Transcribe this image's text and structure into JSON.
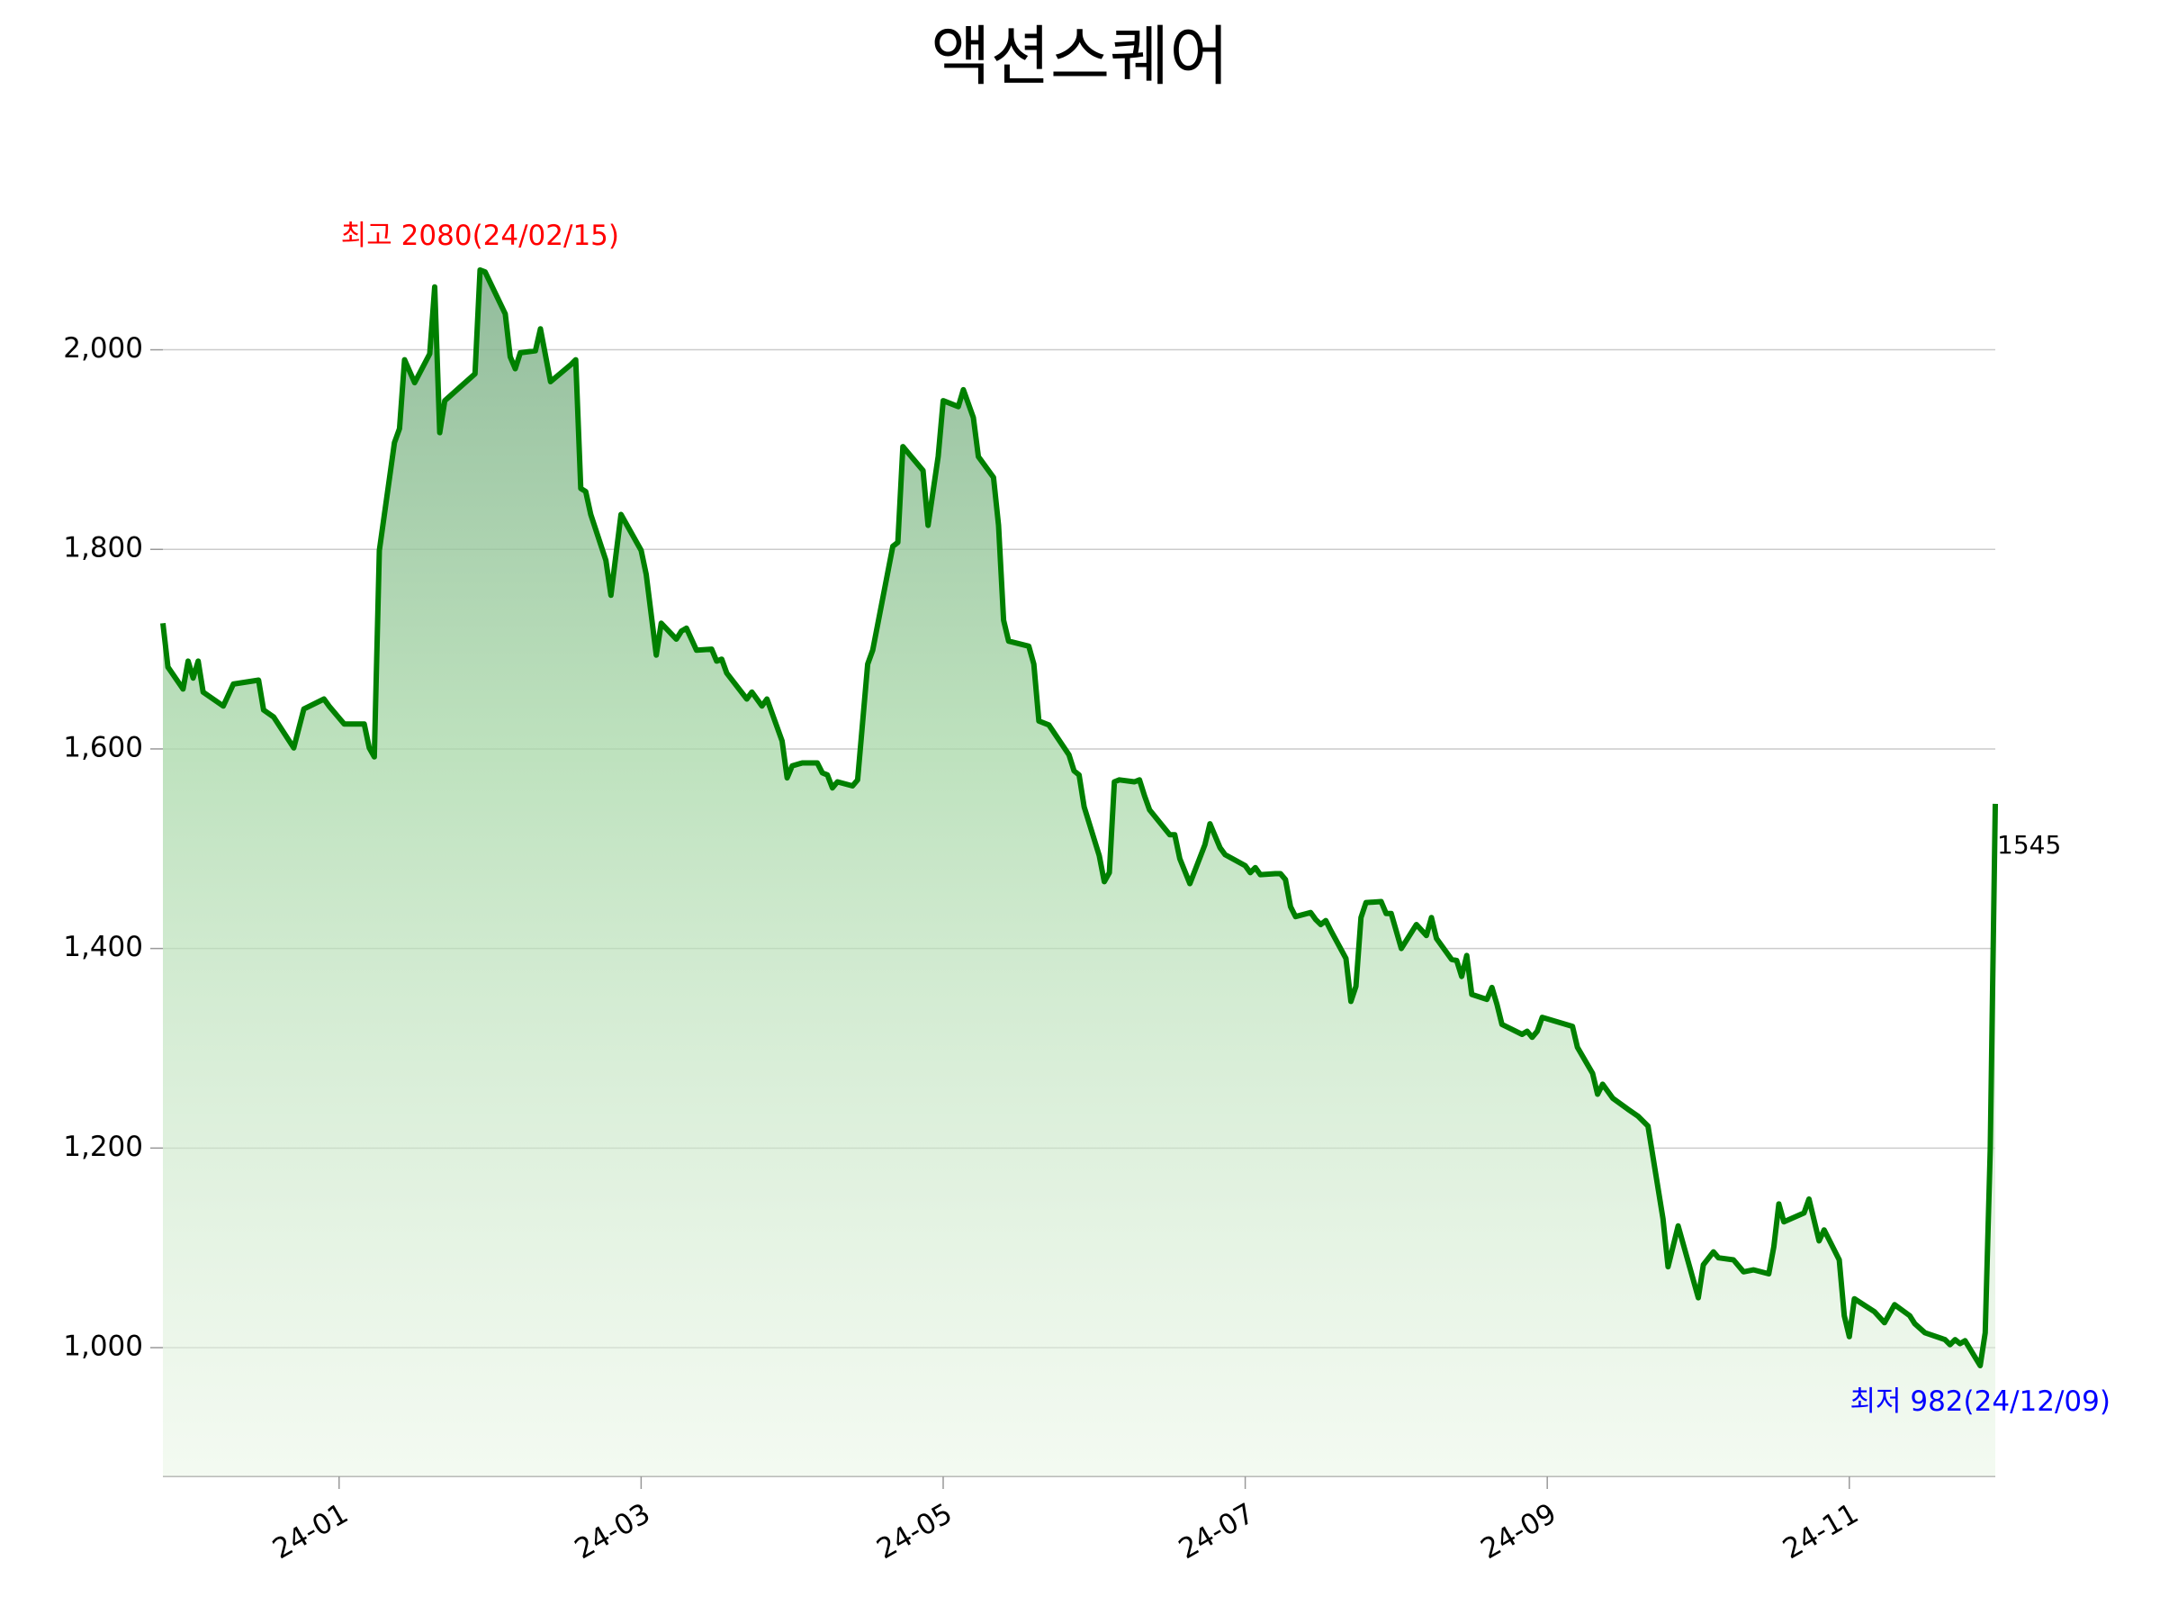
{
  "chart_data": {
    "type": "area",
    "title": "액션스퀘어",
    "x": [
      "2023-12-14",
      "2023-12-15",
      "2023-12-18",
      "2023-12-19",
      "2023-12-20",
      "2023-12-21",
      "2023-12-22",
      "2023-12-26",
      "2023-12-28",
      "2024-01-02",
      "2024-01-03",
      "2024-01-05",
      "2024-01-09",
      "2024-01-11",
      "2024-01-15",
      "2024-01-16",
      "2024-01-19",
      "2024-01-23",
      "2024-01-24",
      "2024-01-25",
      "2024-01-26",
      "2024-01-29",
      "2024-01-30",
      "2024-01-31",
      "2024-02-02",
      "2024-02-05",
      "2024-02-06",
      "2024-02-07",
      "2024-02-08",
      "2024-02-14",
      "2024-02-15",
      "2024-02-16",
      "2024-02-20",
      "2024-02-21",
      "2024-02-22",
      "2024-02-23",
      "2024-02-26",
      "2024-02-27",
      "2024-02-29",
      "2024-03-04",
      "2024-03-05",
      "2024-03-06",
      "2024-03-07",
      "2024-03-08",
      "2024-03-11",
      "2024-03-12",
      "2024-03-14",
      "2024-03-18",
      "2024-03-19",
      "2024-03-21",
      "2024-03-22",
      "2024-03-25",
      "2024-03-26",
      "2024-03-27",
      "2024-03-29",
      "2024-04-01",
      "2024-04-02",
      "2024-04-03",
      "2024-04-04",
      "2024-04-08",
      "2024-04-09",
      "2024-04-11",
      "2024-04-12",
      "2024-04-15",
      "2024-04-16",
      "2024-04-17",
      "2024-04-19",
      "2024-04-22",
      "2024-04-23",
      "2024-04-24",
      "2024-04-25",
      "2024-04-26",
      "2024-04-29",
      "2024-04-30",
      "2024-05-02",
      "2024-05-03",
      "2024-05-07",
      "2024-05-08",
      "2024-05-09",
      "2024-05-13",
      "2024-05-14",
      "2024-05-16",
      "2024-05-17",
      "2024-05-20",
      "2024-05-21",
      "2024-05-23",
      "2024-05-24",
      "2024-05-27",
      "2024-05-28",
      "2024-05-29",
      "2024-05-30",
      "2024-06-03",
      "2024-06-04",
      "2024-06-05",
      "2024-06-07",
      "2024-06-11",
      "2024-06-12",
      "2024-06-13",
      "2024-06-14",
      "2024-06-17",
      "2024-06-18",
      "2024-06-19",
      "2024-06-20",
      "2024-06-21",
      "2024-06-24",
      "2024-06-25",
      "2024-06-26",
      "2024-06-27",
      "2024-07-01",
      "2024-07-02",
      "2024-07-03",
      "2024-07-05",
      "2024-07-08",
      "2024-07-09",
      "2024-07-11",
      "2024-07-12",
      "2024-07-16",
      "2024-07-17",
      "2024-07-18",
      "2024-07-19",
      "2024-07-22",
      "2024-07-23",
      "2024-07-24",
      "2024-07-25",
      "2024-07-26",
      "2024-07-29",
      "2024-07-30",
      "2024-07-31",
      "2024-08-01",
      "2024-08-02",
      "2024-08-05",
      "2024-08-06",
      "2024-08-07",
      "2024-08-08",
      "2024-08-09",
      "2024-08-12",
      "2024-08-13",
      "2024-08-14",
      "2024-08-16",
      "2024-08-19",
      "2024-08-21",
      "2024-08-22",
      "2024-08-23",
      "2024-08-26",
      "2024-08-27",
      "2024-08-28",
      "2024-08-29",
      "2024-08-30",
      "2024-09-02",
      "2024-09-03",
      "2024-09-04",
      "2024-09-05",
      "2024-09-09",
      "2024-09-10",
      "2024-09-11",
      "2024-09-12",
      "2024-09-13",
      "2024-09-19",
      "2024-09-20",
      "2024-09-23",
      "2024-09-24",
      "2024-09-25",
      "2024-09-27",
      "2024-09-30",
      "2024-10-02",
      "2024-10-04",
      "2024-10-07",
      "2024-10-08",
      "2024-10-10",
      "2024-10-14",
      "2024-10-15",
      "2024-10-17",
      "2024-10-18",
      "2024-10-21",
      "2024-10-23",
      "2024-10-25",
      "2024-10-28",
      "2024-10-29",
      "2024-10-30",
      "2024-10-31",
      "2024-11-04",
      "2024-11-05",
      "2024-11-07",
      "2024-11-08",
      "2024-11-11",
      "2024-11-12",
      "2024-11-13",
      "2024-11-14",
      "2024-11-18",
      "2024-11-20",
      "2024-11-22",
      "2024-11-25",
      "2024-11-26",
      "2024-11-28",
      "2024-12-02",
      "2024-12-03",
      "2024-12-04",
      "2024-12-05",
      "2024-12-06",
      "2024-12-09",
      "2024-12-10",
      "2024-12-11",
      "2024-12-12"
    ],
    "values": [
      1726,
      1682,
      1660,
      1688,
      1671,
      1688,
      1657,
      1643,
      1665,
      1669,
      1639,
      1632,
      1601,
      1640,
      1650,
      1643,
      1625,
      1625,
      1601,
      1592,
      1799,
      1907,
      1921,
      1990,
      1967,
      1996,
      2063,
      1917,
      1949,
      1976,
      2080,
      2078,
      2036,
      1993,
      1981,
      1997,
      1999,
      2021,
      1968,
      1985,
      1990,
      1861,
      1858,
      1835,
      1789,
      1754,
      1835,
      1799,
      1775,
      1694,
      1726,
      1710,
      1718,
      1721,
      1699,
      1700,
      1688,
      1690,
      1676,
      1650,
      1657,
      1643,
      1650,
      1608,
      1571,
      1583,
      1586,
      1586,
      1576,
      1574,
      1561,
      1567,
      1563,
      1569,
      1685,
      1699,
      1803,
      1807,
      1903,
      1879,
      1824,
      1893,
      1949,
      1943,
      1960,
      1932,
      1893,
      1872,
      1824,
      1729,
      1708,
      1703,
      1685,
      1628,
      1624,
      1594,
      1578,
      1574,
      1542,
      1493,
      1467,
      1476,
      1567,
      1569,
      1567,
      1569,
      1553,
      1539,
      1514,
      1514,
      1490,
      1465,
      1504,
      1525,
      1501,
      1494,
      1483,
      1476,
      1481,
      1474,
      1475,
      1475,
      1469,
      1442,
      1432,
      1436,
      1429,
      1424,
      1428,
      1418,
      1390,
      1347,
      1362,
      1431,
      1446,
      1447,
      1435,
      1435,
      1400,
      1424,
      1413,
      1431,
      1410,
      1389,
      1388,
      1372,
      1393,
      1354,
      1349,
      1361,
      1344,
      1324,
      1314,
      1317,
      1311,
      1317,
      1331,
      1322,
      1301,
      1275,
      1254,
      1264,
      1250,
      1239,
      1232,
      1222,
      1129,
      1081,
      1122,
      1050,
      1083,
      1096,
      1090,
      1088,
      1076,
      1078,
      1074,
      1101,
      1144,
      1126,
      1135,
      1149,
      1107,
      1118,
      1088,
      1032,
      1011,
      1049,
      1036,
      1025,
      1043,
      1032,
      1024,
      1015,
      1008,
      1003,
      1008,
      1004,
      1007,
      982,
      1015,
      1199,
      1545
    ],
    "color": "#008000",
    "xlim": [
      "2023-12-14",
      "2024-12-12"
    ],
    "xticks": [
      {
        "value": "2024-01-18",
        "label": "24-01"
      },
      {
        "value": "2024-03-18",
        "label": "24-03"
      },
      {
        "value": "2024-05-17",
        "label": "24-05"
      },
      {
        "value": "2024-07-16",
        "label": "24-07"
      },
      {
        "value": "2024-09-14",
        "label": "24-09"
      },
      {
        "value": "2024-11-13",
        "label": "24-11"
      }
    ],
    "ylim": [
      871,
      2125
    ],
    "yticks": [
      {
        "value": 1000,
        "label": "1,000"
      },
      {
        "value": 1200,
        "label": "1,200"
      },
      {
        "value": 1400,
        "label": "1,400"
      },
      {
        "value": 1600,
        "label": "1,600"
      },
      {
        "value": 1800,
        "label": "1,800"
      },
      {
        "value": 2000,
        "label": "2,000"
      }
    ],
    "grid": true,
    "annotations": {
      "high": {
        "text": "최고 2080(24/02/15)",
        "color": "red"
      },
      "low": {
        "text": "최저 982(24/12/09)",
        "color": "blue"
      },
      "last": {
        "text": "1545",
        "color": "black"
      }
    }
  }
}
